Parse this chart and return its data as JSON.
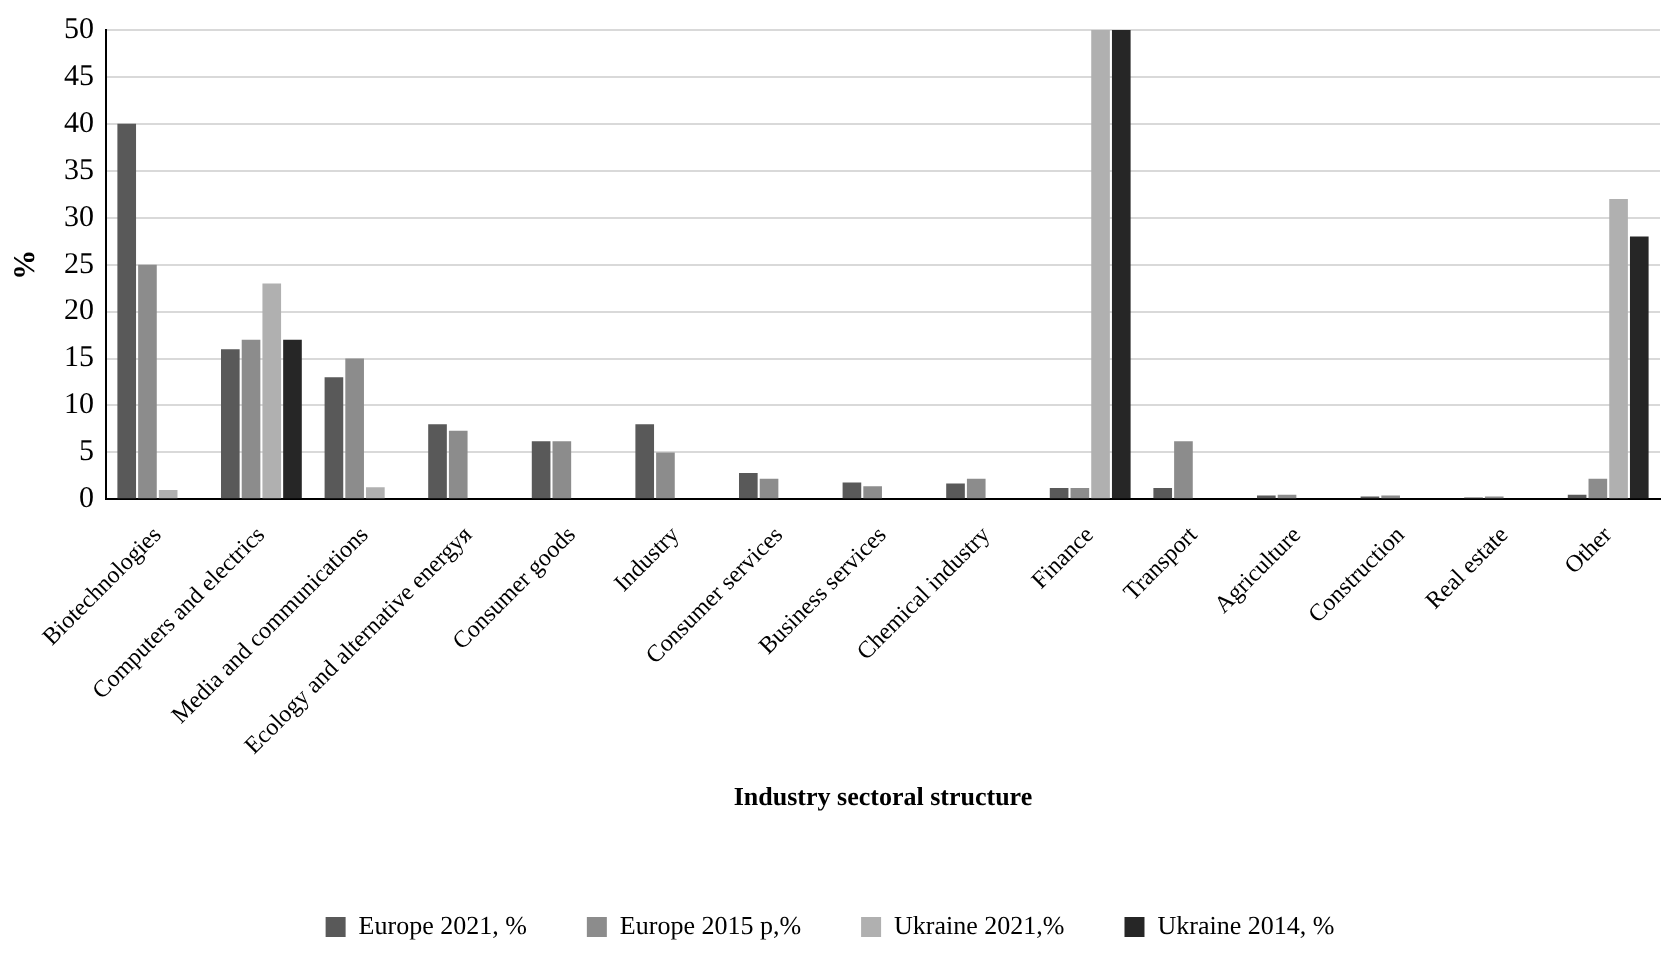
{
  "chart_data": {
    "type": "bar",
    "ylabel": "%",
    "xlabel": "Industry sectoral structure",
    "categories": [
      "Biotechnologies",
      "Computers and electrics",
      "Media and communications",
      "Ecology and alternative energyя",
      "Consumer goods",
      "Industry",
      "Consumer services",
      "Business services",
      "Chemical industry",
      "Finance",
      "Transport",
      "Agriculture",
      "Construction",
      "Real estate",
      "Other"
    ],
    "series": [
      {
        "name": "Europe 2021, %",
        "color": "#595959",
        "values": [
          40,
          16,
          13,
          8,
          6.2,
          8,
          2.8,
          1.8,
          1.7,
          1.2,
          1.2,
          0.4,
          0.3,
          0.2,
          0.5
        ]
      },
      {
        "name": "Europe 2015 p,%",
        "color": "#8c8c8c",
        "values": [
          25,
          17,
          15,
          7.3,
          6.2,
          5,
          2.2,
          1.4,
          2.2,
          1.2,
          6.2,
          0.5,
          0.4,
          0.3,
          2.2
        ]
      },
      {
        "name": "Ukraine 2021,%",
        "color": "#b0b0b0",
        "values": [
          1,
          23,
          1.3,
          null,
          null,
          null,
          null,
          null,
          null,
          50,
          null,
          null,
          null,
          null,
          32
        ]
      },
      {
        "name": "Ukraine 2014, %",
        "color": "#262626",
        "values": [
          null,
          17,
          null,
          null,
          null,
          null,
          null,
          null,
          null,
          50,
          null,
          null,
          null,
          null,
          28
        ]
      }
    ],
    "ylim": [
      0,
      50
    ],
    "yticks": [
      0,
      5,
      10,
      15,
      20,
      25,
      30,
      35,
      40,
      45,
      50
    ],
    "grid": "y",
    "legend": "bottom"
  }
}
